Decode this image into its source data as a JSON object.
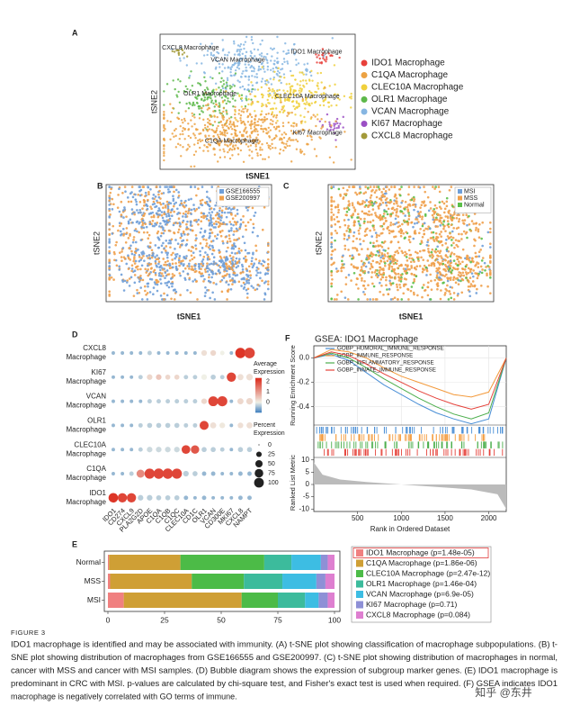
{
  "figure": {
    "A": {
      "label": "A",
      "x_label": "tSNE1",
      "y_label": "tSNE2",
      "cluster_labels": [
        "CXCL8 Macrophage",
        "VCAN Macrophage",
        "IDO1 Macrophage",
        "OLR1 Macrophage",
        "CLEC10A Macrophage",
        "KI67 Macrophage",
        "C1QA Macrophage"
      ],
      "legend": [
        {
          "name": "IDO1 Macrophage",
          "color": "#e8403a"
        },
        {
          "name": "C1QA Macrophage",
          "color": "#eca243"
        },
        {
          "name": "CLEC10A Macrophage",
          "color": "#f0d03c"
        },
        {
          "name": "OLR1 Macrophage",
          "color": "#5db84a"
        },
        {
          "name": "VCAN Macrophage",
          "color": "#86b6e2"
        },
        {
          "name": "KI67 Macrophage",
          "color": "#9b4fc4"
        },
        {
          "name": "CXCL8 Macrophage",
          "color": "#a39a3a"
        }
      ]
    },
    "B": {
      "label": "B",
      "x_label": "tSNE1",
      "y_label": "tSNE2",
      "legend": [
        {
          "name": "GSE166555",
          "color": "#6f9fd8"
        },
        {
          "name": "GSE200997",
          "color": "#f0a04b"
        }
      ]
    },
    "C": {
      "label": "C",
      "x_label": "tSNE1",
      "y_label": "tSNE2",
      "legend": [
        {
          "name": "MSI",
          "color": "#6f9fd8"
        },
        {
          "name": "MSS",
          "color": "#f0a04b"
        },
        {
          "name": "Normal",
          "color": "#5cbf4a"
        }
      ]
    },
    "D": {
      "label": "D",
      "rows": [
        [
          "CXCL8",
          "Macrophage"
        ],
        [
          "KI67",
          "Macrophage"
        ],
        [
          "VCAN",
          "Macrophage"
        ],
        [
          "OLR1",
          "Macrophage"
        ],
        [
          "CLEC10A",
          "Macrophage"
        ],
        [
          "C1QA",
          "Macrophage"
        ],
        [
          "IDO1",
          "Macrophage"
        ]
      ],
      "genes": [
        "IDO1",
        "CD274",
        "CXCL9",
        "PLA2G2D",
        "APOE",
        "C1QA",
        "C1QB",
        "C1QC",
        "CLEC10A",
        "CD1C",
        "OLR1",
        "VCAN",
        "CD300E",
        "MKI67",
        "CXCL8",
        "NAMPT"
      ],
      "pct": [
        [
          5,
          5,
          5,
          5,
          10,
          5,
          5,
          5,
          5,
          5,
          20,
          20,
          10,
          5,
          90,
          95
        ],
        [
          5,
          5,
          5,
          10,
          20,
          20,
          15,
          15,
          10,
          10,
          20,
          15,
          10,
          70,
          25,
          30
        ],
        [
          5,
          5,
          5,
          5,
          10,
          10,
          10,
          10,
          10,
          10,
          20,
          80,
          85,
          5,
          25,
          30
        ],
        [
          5,
          5,
          5,
          10,
          15,
          15,
          15,
          15,
          10,
          10,
          65,
          25,
          20,
          5,
          20,
          25
        ],
        [
          5,
          5,
          5,
          10,
          20,
          20,
          20,
          20,
          60,
          55,
          15,
          15,
          10,
          5,
          15,
          15
        ],
        [
          5,
          5,
          10,
          50,
          85,
          90,
          90,
          85,
          20,
          15,
          10,
          10,
          5,
          5,
          10,
          10
        ],
        [
          75,
          70,
          70,
          20,
          20,
          15,
          15,
          15,
          10,
          5,
          10,
          5,
          5,
          5,
          10,
          10
        ]
      ],
      "expr": [
        [
          -0.5,
          -0.5,
          -0.5,
          -0.5,
          -0.3,
          -0.5,
          -0.5,
          -0.5,
          -0.5,
          -0.5,
          0.2,
          0.3,
          0,
          -0.5,
          2.2,
          2
        ],
        [
          -0.5,
          -0.5,
          -0.5,
          -0.3,
          0.3,
          0.5,
          0.3,
          0.3,
          -0.3,
          -0.3,
          0,
          -0.3,
          -0.3,
          2,
          0.2,
          0.2
        ],
        [
          -0.5,
          -0.5,
          -0.5,
          -0.5,
          -0.3,
          -0.3,
          -0.3,
          -0.3,
          -0.3,
          -0.3,
          0.3,
          2,
          2,
          -0.5,
          0.3,
          0.3
        ],
        [
          -0.5,
          -0.5,
          -0.5,
          -0.3,
          -0.3,
          -0.3,
          -0.3,
          -0.3,
          -0.3,
          -0.3,
          2,
          0.2,
          0.1,
          -0.5,
          0.2,
          0.2
        ],
        [
          -0.5,
          -0.5,
          -0.5,
          -0.3,
          -0.2,
          -0.2,
          -0.2,
          -0.2,
          2,
          1.8,
          -0.3,
          -0.3,
          -0.3,
          -0.5,
          -0.3,
          -0.3
        ],
        [
          -0.5,
          -0.5,
          -0.3,
          1.2,
          2,
          2,
          2,
          2,
          -0.3,
          -0.3,
          -0.5,
          -0.5,
          -0.5,
          -0.5,
          -0.5,
          -0.5
        ],
        [
          2.2,
          2,
          2,
          -0.3,
          -0.3,
          -0.3,
          -0.3,
          -0.3,
          -0.5,
          -0.5,
          -0.5,
          -0.5,
          -0.5,
          -0.5,
          -0.5,
          -0.5
        ]
      ],
      "expr_lim": [
        -1,
        2.3
      ],
      "expr_title": [
        "Average",
        "Expression"
      ],
      "expr_ticks": [
        2,
        1,
        0
      ],
      "pct_title": [
        "Percent",
        "Expression"
      ],
      "pct_ticks": [
        0,
        25,
        50,
        75,
        100
      ]
    },
    "E": {
      "label": "E"
    },
    "F": {
      "label": "F",
      "title": "GSEA: IDO1 Macrophage",
      "y_label": "Running Enrichment Score",
      "y2_label": "Ranked List Metric",
      "x_label": "Rank in Ordered Dataset"
    },
    "caption": {
      "heading": "FIGURE 3",
      "lines": [
        "IDO1 macrophage is identified and may be associated with immunity. (A) t-SNE plot showing classification of macrophage subpopulations. (B) t-",
        "SNE plot showing distribution of macrophages from GSE166555 and GSE200997. (C) t-SNE plot showing distribution of macrophages in normal,",
        "cancer with MSS and cancer with MSI samples. (D) Bubble diagram shows the expression of subgroup marker genes. (E) IDO1 macrophage is",
        "predominant in CRC with MSI. p-values are calculated by chi-square test, and Fisher's exact test is used when required. (F) GSEA indicates IDO1",
        "macrophage is negatively correlated with GO terms of immune."
      ]
    },
    "watermark": "知乎 @东井"
  },
  "chart_data": [
    {
      "type": "bar",
      "orientation": "horizontal",
      "stacked": true,
      "categories": [
        "Normal",
        "MSS",
        "MSI"
      ],
      "series": [
        {
          "name": "IDO1 Macrophage (p=1.48e-05)",
          "color": "#f08080",
          "values": [
            0.5,
            1,
            7
          ]
        },
        {
          "name": "C1QA Macrophage (p=1.86e-06)",
          "color": "#cf9f35",
          "values": [
            31.5,
            36,
            52
          ]
        },
        {
          "name": "CLEC10A Macrophage (p=2.47e-12)",
          "color": "#4cbb47",
          "values": [
            37,
            23,
            16
          ]
        },
        {
          "name": "OLR1 Macrophage (p=1.46e-04)",
          "color": "#3cbb9c",
          "values": [
            12,
            17,
            12
          ]
        },
        {
          "name": "VCAN Macrophage (p=6.9e-05)",
          "color": "#3dbde3",
          "values": [
            13,
            15,
            6
          ]
        },
        {
          "name": "KI67 Macrophage (p=0.71)",
          "color": "#8e90d6",
          "values": [
            3,
            4,
            4
          ]
        },
        {
          "name": "CXCL8 Macrophage (p=0.084)",
          "color": "#de7fd0",
          "values": [
            3,
            4,
            3
          ]
        }
      ],
      "xlim": [
        0,
        100
      ],
      "xticks": [
        0,
        25,
        50,
        75,
        100
      ],
      "highlight": 0
    },
    {
      "type": "line",
      "x": [
        0,
        200,
        400,
        600,
        800,
        1000,
        1200,
        1400,
        1600,
        1800,
        2000,
        2200
      ],
      "series": [
        {
          "name": "GOBP_HUMORAL_IMMUNE_RESPONSE",
          "color": "#4a8fd6",
          "values": [
            0,
            0.03,
            -0.02,
            -0.12,
            -0.22,
            -0.3,
            -0.38,
            -0.45,
            -0.5,
            -0.54,
            -0.5,
            0
          ]
        },
        {
          "name": "GOBP_IMMUNE_RESPONSE",
          "color": "#f39a3c",
          "values": [
            0,
            0.07,
            0.05,
            0,
            -0.08,
            -0.15,
            -0.2,
            -0.25,
            -0.3,
            -0.32,
            -0.28,
            0
          ]
        },
        {
          "name": "GOBP_INFLAMMATORY_RESPONSE",
          "color": "#4cae4c",
          "values": [
            0,
            0.04,
            0,
            -0.08,
            -0.17,
            -0.25,
            -0.33,
            -0.4,
            -0.46,
            -0.5,
            -0.45,
            0
          ]
        },
        {
          "name": "GOBP_INNATE_IMMUNE_RESPONSE",
          "color": "#e5423a",
          "values": [
            0,
            0.05,
            0.02,
            -0.05,
            -0.13,
            -0.2,
            -0.27,
            -0.33,
            -0.38,
            -0.42,
            -0.38,
            0
          ]
        }
      ],
      "xlim": [
        0,
        2200
      ],
      "ylim": [
        -0.55,
        0.1
      ],
      "yticks": [
        {
          "value": 0,
          "label": "0.0"
        },
        {
          "value": -0.2,
          "label": "-0.2"
        },
        {
          "value": -0.4,
          "label": "-0.4"
        }
      ]
    },
    {
      "type": "area",
      "x": [
        0,
        100,
        300,
        600,
        1000,
        1400,
        1800,
        2100,
        2200
      ],
      "values": [
        9,
        4,
        2,
        1,
        0,
        -1,
        -2,
        -4,
        -10
      ],
      "color": "#bbbbbb",
      "xlim": [
        0,
        2200
      ],
      "ylim": [
        -11,
        11
      ],
      "yticks": [
        10,
        5,
        0,
        -5,
        -10
      ],
      "xticks": [
        500,
        1000,
        1500,
        2000
      ]
    }
  ]
}
